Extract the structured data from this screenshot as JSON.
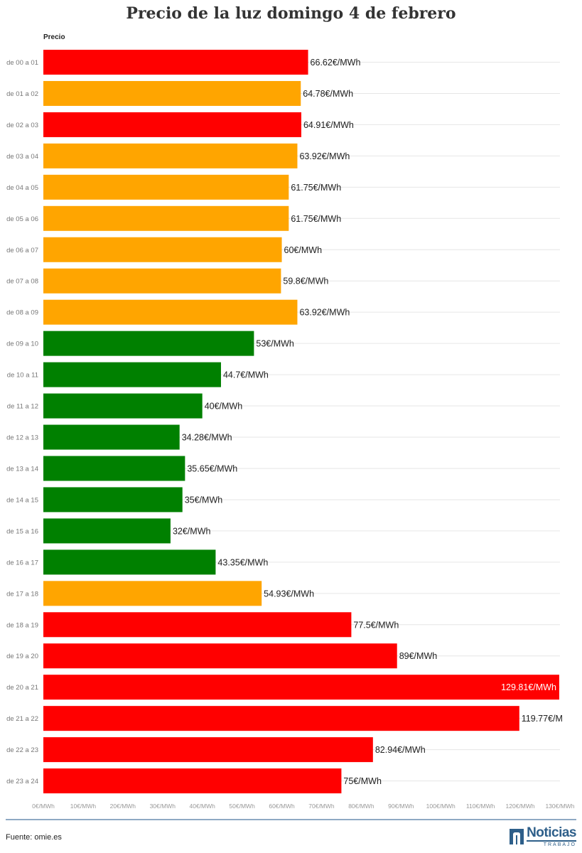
{
  "title": "Precio de la luz domingo 4 de febrero",
  "column_header": "Precio",
  "source": "Fuente: omie.es",
  "logo": {
    "name": "Noticias",
    "sub": "TRABAJO"
  },
  "colors": {
    "high": "#ff0000",
    "mid": "#ffa500",
    "low": "#008000"
  },
  "chart_data": {
    "type": "bar",
    "orientation": "horizontal",
    "title": "Precio de la luz domingo 4 de febrero",
    "series_label": "Precio",
    "unit_suffix": "€/MWh",
    "xlim": [
      0,
      130
    ],
    "x_ticks": [
      "0€/MWh",
      "10€/MWh",
      "20€/MWh",
      "30€/MWh",
      "40€/MWh",
      "50€/MWh",
      "60€/MWh",
      "70€/MWh",
      "80€/MWh",
      "90€/MWh",
      "100€/MWh",
      "110€/MWh",
      "120€/MWh",
      "130€/MWh"
    ],
    "x_tick_values": [
      0,
      10,
      20,
      30,
      40,
      50,
      60,
      70,
      80,
      90,
      100,
      110,
      120,
      130
    ],
    "grid": true,
    "categories": [
      "de 00 a 01",
      "de 01 a 02",
      "de 02 a 03",
      "de 03 a 04",
      "de 04 a 05",
      "de 05 a 06",
      "de 06 a 07",
      "de 07 a 08",
      "de 08 a 09",
      "de 09 a 10",
      "de 10 a 11",
      "de 11 a 12",
      "de 12 a 13",
      "de 13 a 14",
      "de 14 a 15",
      "de 15 a 16",
      "de 16 a 17",
      "de 17 a 18",
      "de 18 a 19",
      "de 19 a 20",
      "de 20 a 21",
      "de 21 a 22",
      "de 22 a 23",
      "de 23 a 24"
    ],
    "values": [
      66.62,
      64.78,
      64.91,
      63.92,
      61.75,
      61.75,
      60,
      59.8,
      63.92,
      53,
      44.7,
      40,
      34.28,
      35.65,
      35,
      32,
      43.35,
      54.93,
      77.5,
      89,
      129.81,
      119.77,
      82.94,
      75
    ],
    "value_labels": [
      "66.62€/MWh",
      "64.78€/MWh",
      "64.91€/MWh",
      "63.92€/MWh",
      "61.75€/MWh",
      "61.75€/MWh",
      "60€/MWh",
      "59.8€/MWh",
      "63.92€/MWh",
      "53€/MWh",
      "44.7€/MWh",
      "40€/MWh",
      "34.28€/MWh",
      "35.65€/MWh",
      "35€/MWh",
      "32€/MWh",
      "43.35€/MWh",
      "54.93€/MWh",
      "77.5€/MWh",
      "89€/MWh",
      "129.81€/MWh",
      "119.77€/M",
      "82.94€/MWh",
      "75€/MWh"
    ],
    "bar_colors": [
      "high",
      "mid",
      "high",
      "mid",
      "mid",
      "mid",
      "mid",
      "mid",
      "mid",
      "low",
      "low",
      "low",
      "low",
      "low",
      "low",
      "low",
      "low",
      "mid",
      "high",
      "high",
      "high",
      "high",
      "high",
      "high"
    ]
  }
}
